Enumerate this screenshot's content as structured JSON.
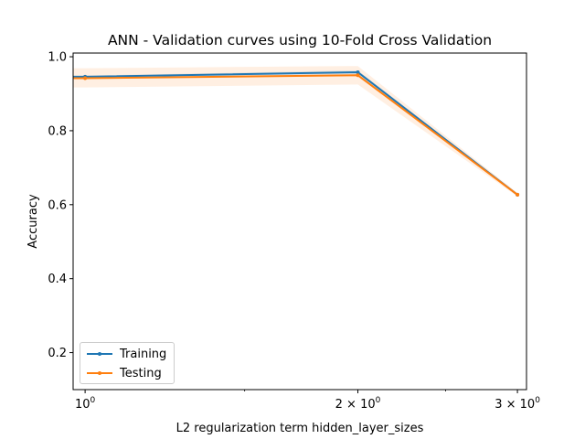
{
  "chart_data": {
    "type": "line",
    "title": "ANN - Validation curves using 10-Fold Cross Validation",
    "xlabel": "L2 regularization term hidden_layer_sizes",
    "ylabel": "Accuracy",
    "xscale": "log",
    "x": [
      1,
      2,
      3
    ],
    "xlim": [
      0.97,
      3.07
    ],
    "ylim": [
      0.1,
      1.01
    ],
    "yticks": [
      0.2,
      0.4,
      0.6,
      0.8,
      1.0
    ],
    "ytick_labels": [
      "0.2",
      "0.4",
      "0.6",
      "0.8",
      "1.0"
    ],
    "xticks": [
      1,
      2,
      3
    ],
    "xtick_labels": [
      {
        "base": "10",
        "exp": "0"
      },
      {
        "prefix": "2 × ",
        "base": "10",
        "exp": "0"
      },
      {
        "prefix": "3 × ",
        "base": "10",
        "exp": "0"
      }
    ],
    "series": [
      {
        "name": "Training",
        "color": "#1f77b4",
        "values": [
          0.946,
          0.958,
          0.627
        ],
        "band_low": [
          0.944,
          0.953,
          0.626
        ],
        "band_high": [
          0.949,
          0.963,
          0.628
        ]
      },
      {
        "name": "Testing",
        "color": "#ff7f0e",
        "values": [
          0.942,
          0.95,
          0.627
        ],
        "band_low": [
          0.917,
          0.925,
          0.622
        ],
        "band_high": [
          0.969,
          0.975,
          0.632
        ]
      }
    ],
    "legend_position": "lower-left",
    "grid": false
  }
}
